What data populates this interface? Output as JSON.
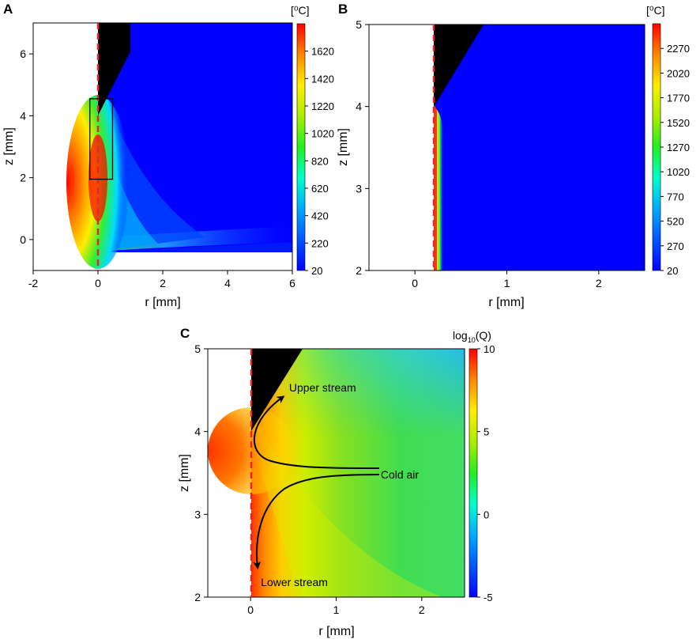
{
  "chart_data": [
    {
      "panel": "A",
      "type": "heatmap",
      "xlabel": "r [mm]",
      "ylabel": "z [mm]",
      "xlim": [
        -2,
        6
      ],
      "ylim": [
        -1,
        7
      ],
      "xticks": [
        "-2",
        "0",
        "2",
        "4",
        "6"
      ],
      "yticks": [
        "0",
        "2",
        "4",
        "6"
      ],
      "colorbar": {
        "unit": "[⁰C]",
        "range": [
          20,
          1820
        ],
        "ticks": [
          "20",
          "220",
          "420",
          "620",
          "820",
          "1020",
          "1220",
          "1420",
          "1620"
        ]
      },
      "inset_box": {
        "r": [
          -0.25,
          0.45
        ],
        "z": [
          1.95,
          4.55
        ]
      },
      "colors": {
        "background": "#0000ff",
        "hot": "#ff0000",
        "symmetry_axis": "#e8262a",
        "electrode": "#000000"
      }
    },
    {
      "panel": "B",
      "type": "heatmap",
      "xlabel": "r [mm]",
      "ylabel": "z [mm]",
      "xlim": [
        -0.5,
        2.5
      ],
      "ylim": [
        2,
        5
      ],
      "xticks": [
        "0",
        "1",
        "2"
      ],
      "yticks": [
        "2",
        "3",
        "4",
        "5"
      ],
      "colorbar": {
        "unit": "[⁰C]",
        "range": [
          20,
          2520
        ],
        "ticks": [
          "20",
          "270",
          "520",
          "770",
          "1020",
          "1270",
          "1520",
          "1770",
          "2020",
          "2270"
        ]
      },
      "colors": {
        "background": "#0000ff",
        "hot": "#ff0000",
        "symmetry_axis": "#e8262a",
        "electrode": "#000000"
      }
    },
    {
      "panel": "C",
      "type": "heatmap",
      "xlabel": "r [mm]",
      "ylabel": "z [mm]",
      "xlim": [
        -0.5,
        2.5
      ],
      "ylim": [
        2,
        5
      ],
      "xticks": [
        "0",
        "1",
        "2"
      ],
      "yticks": [
        "2",
        "3",
        "4",
        "5"
      ],
      "colorbar": {
        "unit_main": "log",
        "unit_sub": "10",
        "unit_tail": "(Q)",
        "range": [
          -5,
          10
        ],
        "ticks": [
          "-5",
          "0",
          "5",
          "10"
        ]
      },
      "annotations": [
        {
          "text": "Upper stream",
          "r": 0.45,
          "z": 4.53
        },
        {
          "text": "Cold air",
          "r": 1.52,
          "z": 3.48
        },
        {
          "text": "Lower stream",
          "r": 0.12,
          "z": 2.18
        }
      ],
      "colors": {
        "background": "#33dd66",
        "hot": "#ff2200",
        "symmetry_axis": "#e8262a",
        "electrode": "#000000"
      }
    }
  ]
}
